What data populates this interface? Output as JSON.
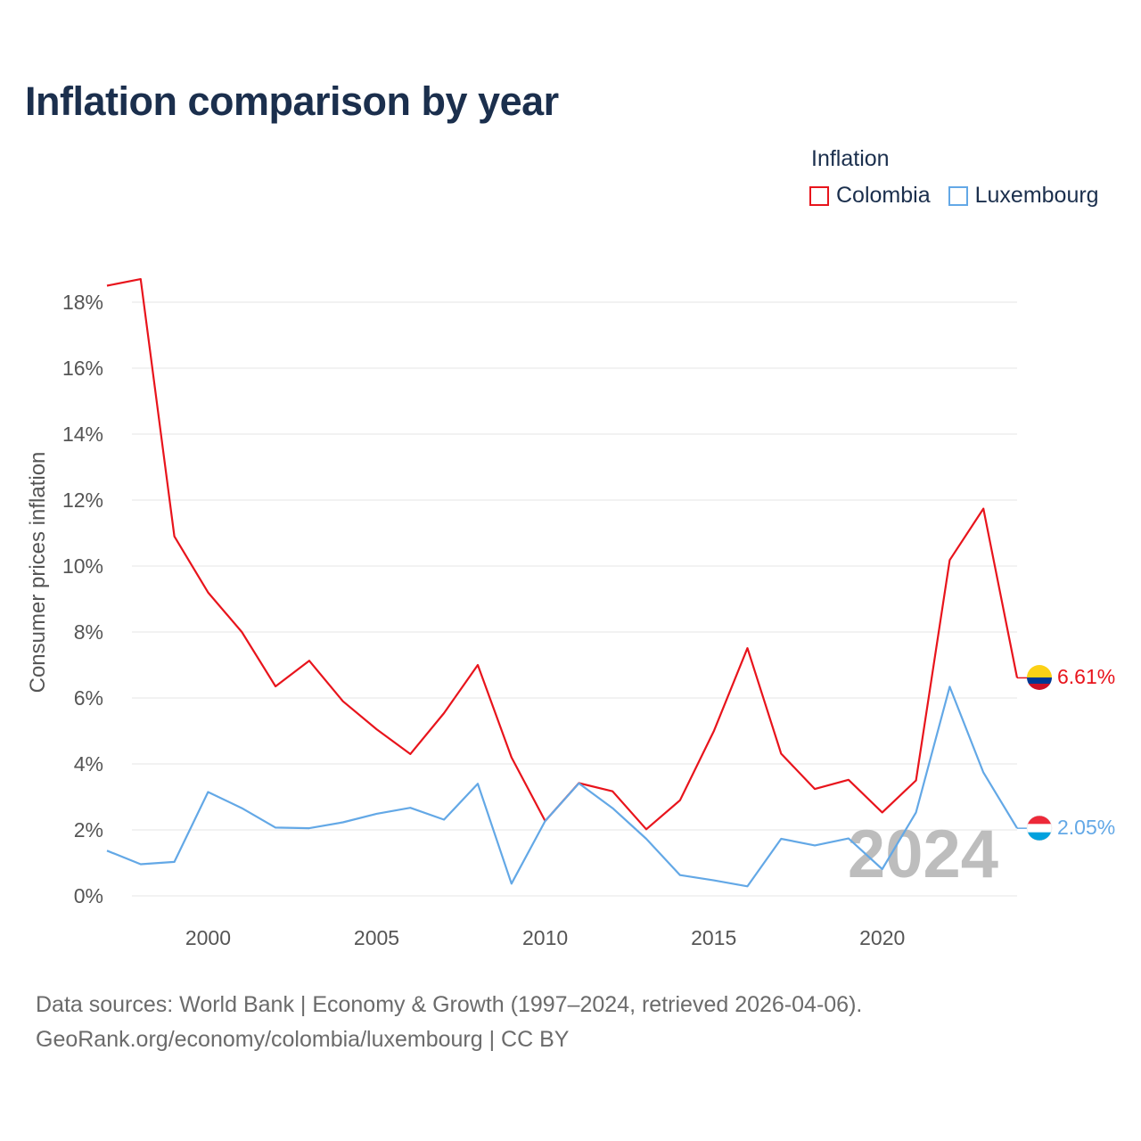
{
  "title": "Inflation comparison by year",
  "legend": {
    "title": "Inflation",
    "items": [
      {
        "label": "Colombia",
        "color": "#e8141c"
      },
      {
        "label": "Luxembourg",
        "color": "#63a8e6"
      }
    ]
  },
  "sources": {
    "line1": "Data sources: World Bank | Economy & Growth (1997–2024, retrieved 2026-04-06).",
    "line2": "GeoRank.org/economy/colombia/luxembourg | CC BY"
  },
  "chart_data": {
    "type": "line",
    "title": "Inflation comparison by year",
    "ylabel": "Consumer prices inflation",
    "xlabel": "",
    "x": [
      1997,
      1998,
      1999,
      2000,
      2001,
      2002,
      2003,
      2004,
      2005,
      2006,
      2007,
      2008,
      2009,
      2010,
      2011,
      2012,
      2013,
      2014,
      2015,
      2016,
      2017,
      2018,
      2019,
      2020,
      2021,
      2022,
      2023,
      2024
    ],
    "xlim": [
      1997,
      2024
    ],
    "ylim": [
      0,
      18
    ],
    "xticks": [
      2000,
      2005,
      2010,
      2015,
      2020
    ],
    "yticks": [
      0,
      2,
      4,
      6,
      8,
      10,
      12,
      14,
      16,
      18
    ],
    "ytick_labels": [
      "0%",
      "2%",
      "4%",
      "6%",
      "8%",
      "10%",
      "12%",
      "14%",
      "16%",
      "18%"
    ],
    "grid": true,
    "legend_position": "top-right",
    "year_watermark": "2024",
    "series": [
      {
        "name": "Colombia",
        "color": "#e8141c",
        "end_label": "6.61%",
        "values": [
          18.5,
          18.7,
          10.9,
          9.2,
          8.0,
          6.35,
          7.13,
          5.9,
          5.05,
          4.3,
          5.54,
          7.0,
          4.2,
          2.27,
          3.42,
          3.17,
          2.02,
          2.9,
          4.99,
          7.51,
          4.31,
          3.24,
          3.52,
          2.53,
          3.5,
          10.18,
          11.74,
          6.61
        ]
      },
      {
        "name": "Luxembourg",
        "color": "#63a8e6",
        "end_label": "2.05%",
        "values": [
          1.37,
          0.96,
          1.03,
          3.15,
          2.66,
          2.07,
          2.05,
          2.23,
          2.49,
          2.67,
          2.31,
          3.4,
          0.37,
          2.27,
          3.41,
          2.66,
          1.73,
          0.63,
          0.47,
          0.29,
          1.73,
          1.53,
          1.74,
          0.81,
          2.53,
          6.34,
          3.74,
          2.05
        ]
      }
    ]
  }
}
